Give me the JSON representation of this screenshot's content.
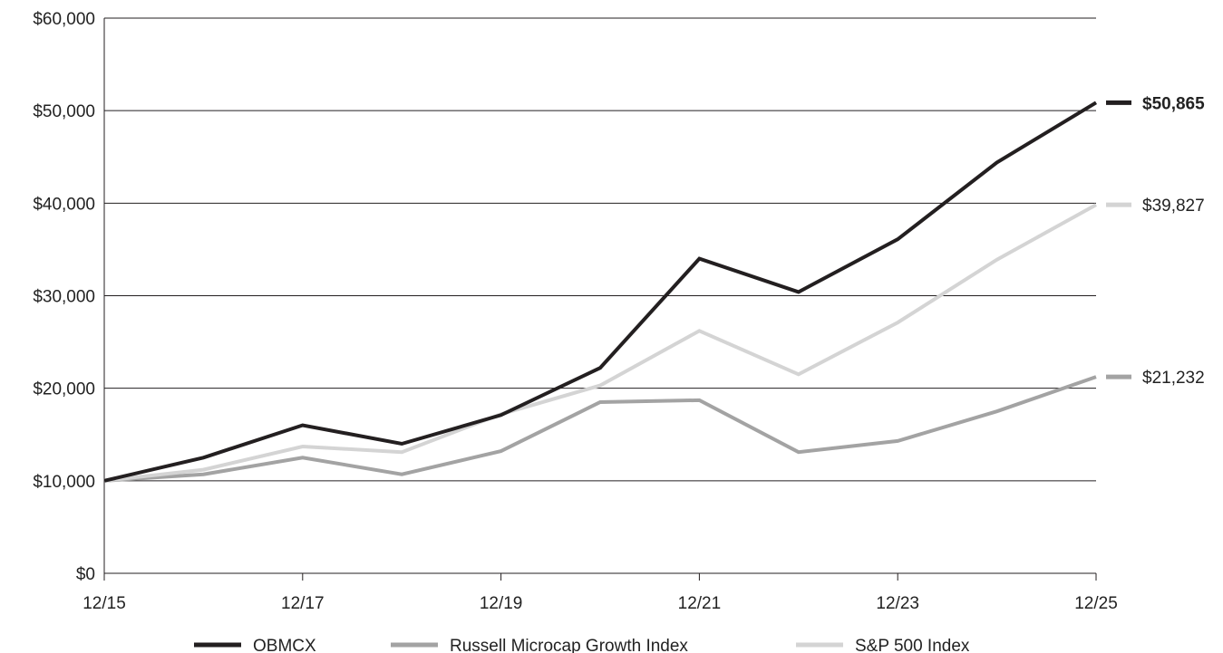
{
  "chart_data": {
    "type": "line",
    "x": [
      "12/15",
      "12/16",
      "12/17",
      "12/18",
      "12/19",
      "12/20",
      "12/21",
      "12/22",
      "12/23",
      "12/24",
      "12/25"
    ],
    "x_tick_labels": [
      "12/15",
      "12/17",
      "12/19",
      "12/21",
      "12/23",
      "12/25"
    ],
    "y_tick_labels": [
      "$0",
      "$10,000",
      "$20,000",
      "$30,000",
      "$40,000",
      "$50,000",
      "$60,000"
    ],
    "y_ticks": [
      0,
      10000,
      20000,
      30000,
      40000,
      50000,
      60000
    ],
    "ylim": [
      0,
      60000
    ],
    "grid": true,
    "legend_position": "bottom",
    "series": [
      {
        "name": "OBMCX",
        "color": "#231f20",
        "values": [
          10000,
          12500,
          16000,
          14000,
          17100,
          22200,
          34000,
          30400,
          36100,
          44400,
          50865
        ],
        "end_label": "$50,865",
        "end_label_bold": true
      },
      {
        "name": "S&P 500 Index",
        "color": "#d4d4d4",
        "values": [
          10000,
          11200,
          13700,
          13100,
          17200,
          20300,
          26200,
          21500,
          27100,
          33900,
          39827
        ],
        "end_label": "$39,827",
        "end_label_bold": false
      },
      {
        "name": "Russell Microcap Growth Index",
        "color": "#a3a3a3",
        "values": [
          10000,
          10700,
          12500,
          10700,
          13200,
          18500,
          18700,
          13100,
          14300,
          17500,
          21232
        ],
        "end_label": "$21,232",
        "end_label_bold": false
      }
    ],
    "legend_order": [
      "OBMCX",
      "Russell Microcap Growth Index",
      "S&P 500 Index"
    ]
  }
}
